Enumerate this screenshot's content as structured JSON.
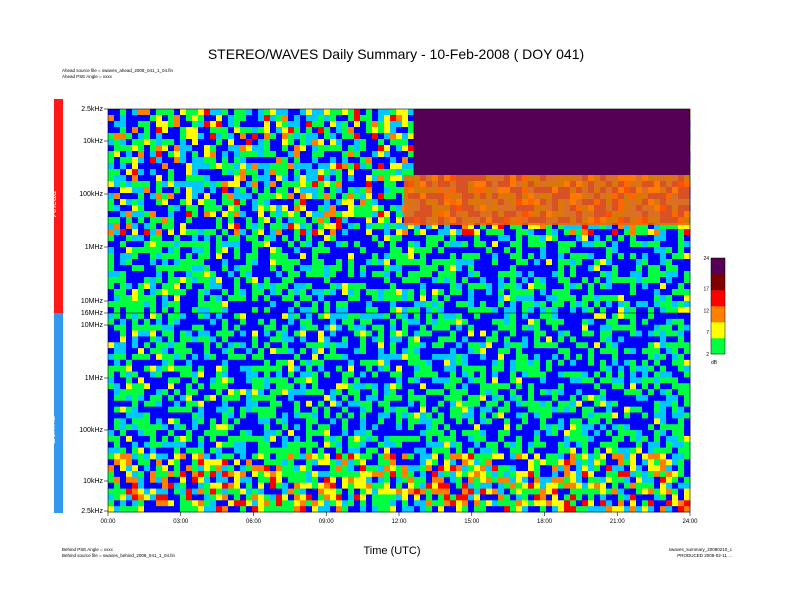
{
  "header": {
    "title": "STEREO/WAVES Daily Summary - 10-Feb-2008 ( DOY 041)",
    "ahead_source": "Ahead source file = swaves_ahead_2008_041_1_04.fin",
    "ahead_pse": "Ahead PSE Angle = xxxx",
    "behind_pse": "Behind PSE Angle = xxxx",
    "behind_source": "Behind source file = swaves_behind_2008_041_1_04.fin",
    "footer_file": "swaves_summary_20080210_c",
    "footer_produced": "PRODUCED 2008-02-11 ..."
  },
  "chart_data": {
    "type": "heatmap",
    "title": "STEREO/WAVES Daily Summary - 10-Feb-2008 ( DOY 041)",
    "xlabel": "Time (UTC)",
    "x_ticks": [
      "00:00",
      "03:00",
      "06:00",
      "09:00",
      "12:00",
      "15:00",
      "18:00",
      "21:00",
      "24:00"
    ],
    "panels": [
      {
        "name": "Ahead",
        "y_ticks": [
          "2.5kHz",
          "10kHz",
          "100kHz",
          "1MHz",
          "10MHz",
          "16MHz"
        ],
        "features": [
          {
            "t_start": 12.6,
            "t_end": 24.0,
            "f_range": [
              "2.5kHz",
              "10kHz"
            ],
            "level": "high"
          },
          {
            "t_start": 12.2,
            "t_end": 24.0,
            "f_range": [
              "10kHz",
              "100kHz"
            ],
            "level": "elevated"
          }
        ]
      },
      {
        "name": "Behind",
        "y_ticks": [
          "16MHz",
          "10MHz",
          "1MHz",
          "100kHz",
          "10kHz",
          "2.5kHz"
        ],
        "features": [
          {
            "t_start": 0.0,
            "t_end": 24.0,
            "f_range": [
              "2.5kHz",
              "10kHz"
            ],
            "level": "elevated"
          }
        ]
      }
    ],
    "colorbar": {
      "ticks": [
        2,
        7,
        12,
        17,
        24
      ],
      "range": [
        2,
        24
      ],
      "unit": "dB",
      "colors": [
        "#00ff40",
        "#ffff00",
        "#ff8000",
        "#ff0000",
        "#800000",
        "#550055"
      ]
    },
    "background_colors": [
      "#0000ff",
      "#00c8ff",
      "#00ff40",
      "#ffff00",
      "#ff8000",
      "#ff0000"
    ]
  }
}
